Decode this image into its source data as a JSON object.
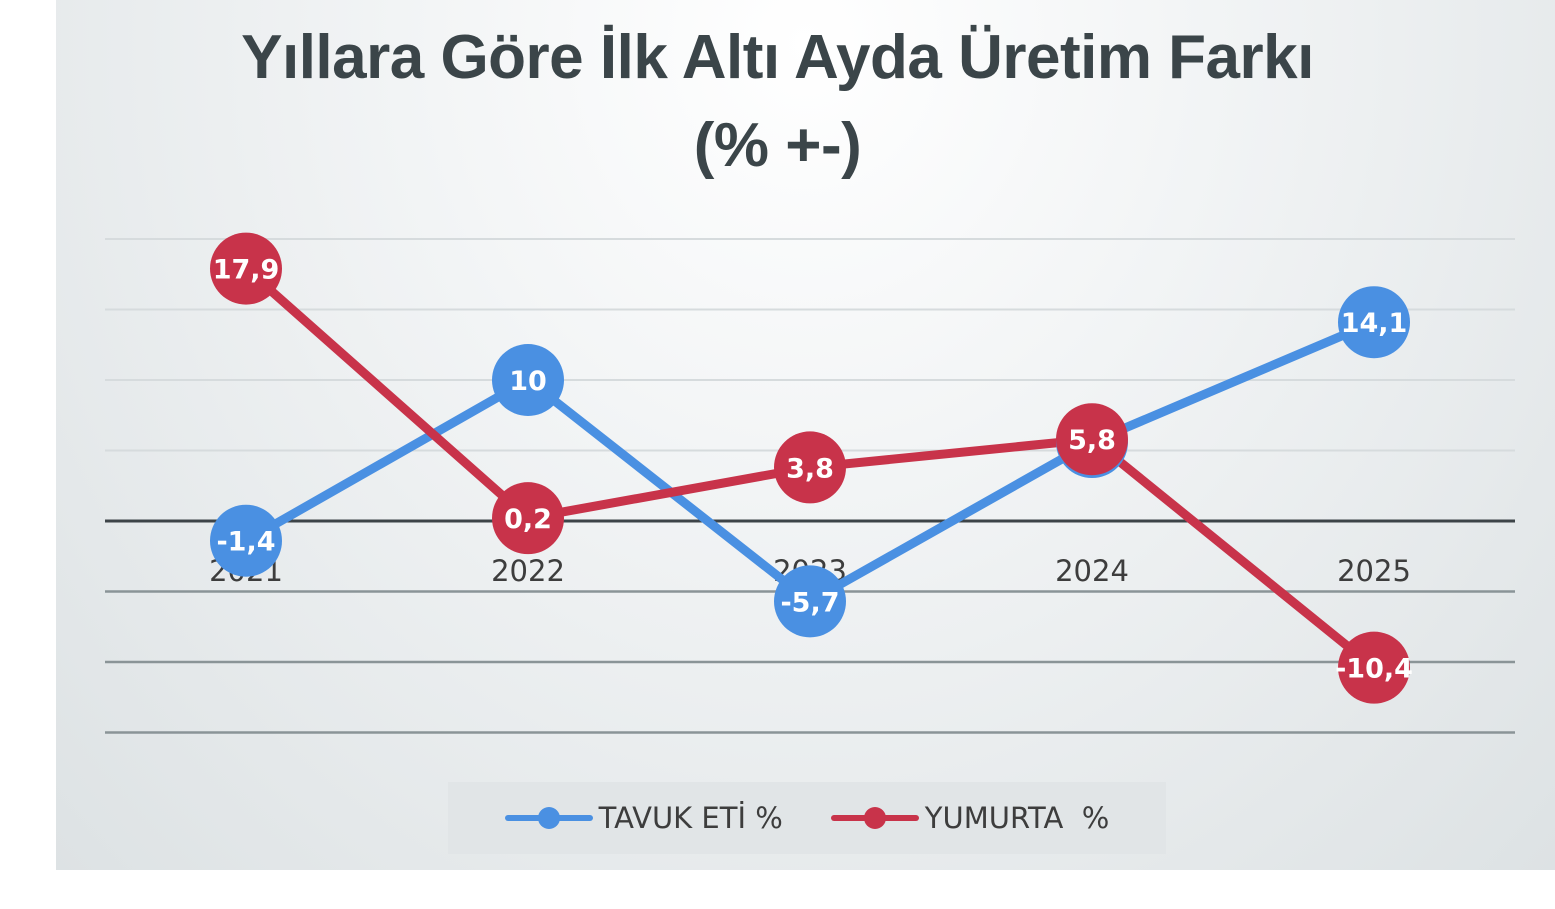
{
  "chart_data": {
    "type": "line",
    "title": "Yıllara Göre İlk Altı Ayda Üretim Farkı",
    "subtitle": "(% +-)",
    "categories": [
      "2021",
      "2022",
      "2023",
      "2024",
      "2025"
    ],
    "series": [
      {
        "name": "TAVUK ETİ %",
        "color": "#4a90e2",
        "values": [
          -1.4,
          10,
          -5.7,
          5.6,
          14.1
        ],
        "labels": [
          "-1,4",
          "10",
          "-5,7",
          "5,6",
          "14,1"
        ]
      },
      {
        "name": "YUMURTA  %",
        "color": "#c8334a",
        "values": [
          17.9,
          0.2,
          3.8,
          5.8,
          -10.4
        ],
        "labels": [
          "17,9",
          "0,2",
          "3,8",
          "5,8",
          "-10,4"
        ]
      }
    ],
    "ylim": [
      -15,
      20
    ],
    "grid": true,
    "legend": "bottom"
  }
}
